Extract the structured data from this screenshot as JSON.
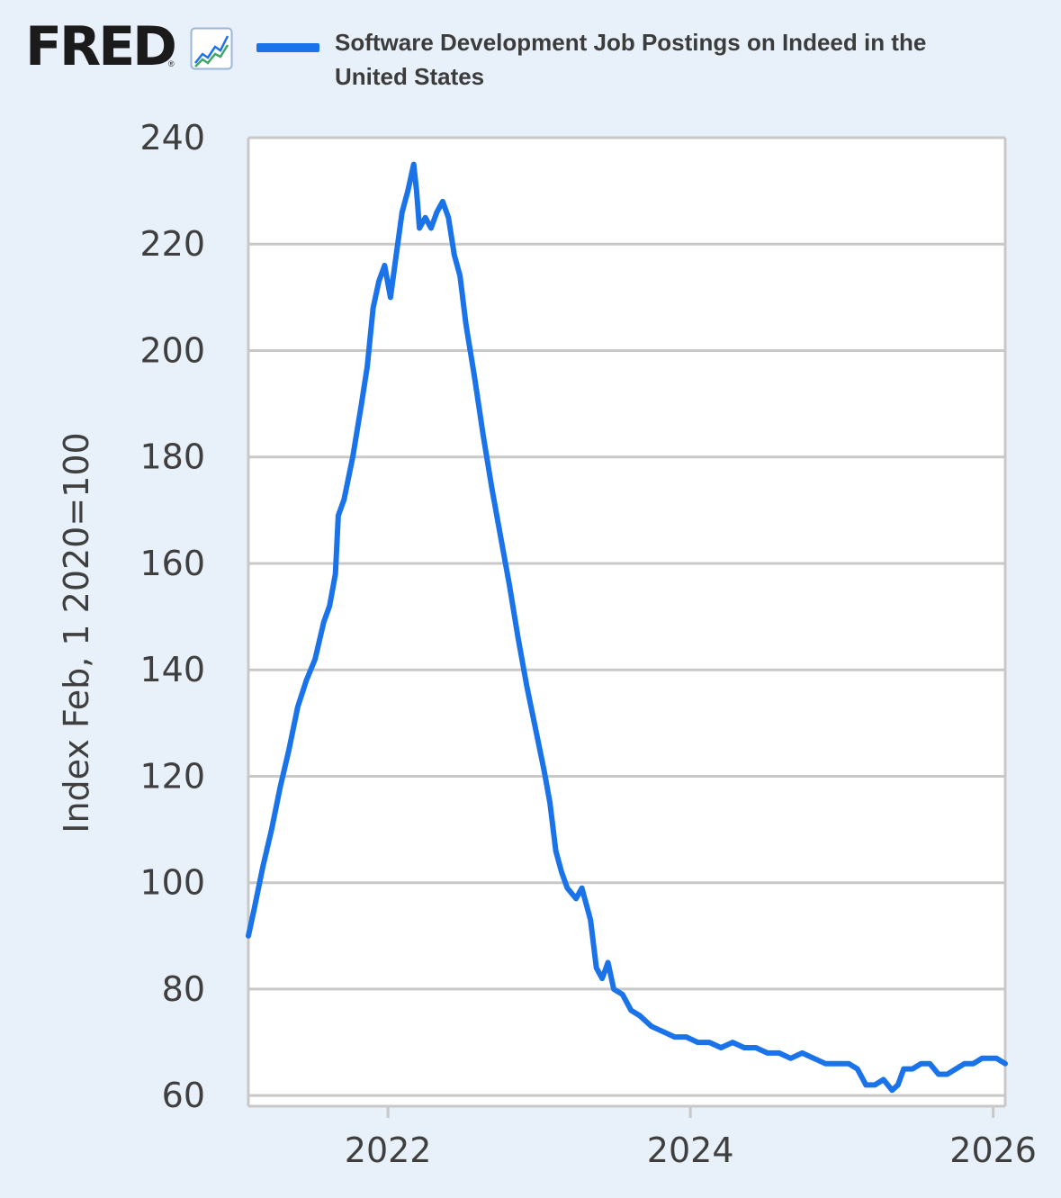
{
  "header": {
    "logo_text": "FRED",
    "logo_reg": "®",
    "logo_icon": "line-chart-icon"
  },
  "colors": {
    "background": "#e8f0fa",
    "plot_background": "#ffffff",
    "series": "#1a73e8",
    "grid": "#c8c8c8"
  },
  "chart_data": {
    "type": "line",
    "title": "",
    "xlabel": "",
    "ylabel": "Index Feb, 1 2020=100",
    "xlim": [
      "2021-01-29",
      "2026-01-30"
    ],
    "ylim": [
      58,
      240
    ],
    "grid": true,
    "legend_position": "top",
    "yticks": [
      60,
      80,
      100,
      120,
      140,
      160,
      180,
      200,
      220,
      240
    ],
    "xticks": [
      "2022-01-01",
      "2024-01-01",
      "2026-01-01"
    ],
    "xtick_labels": [
      "2022",
      "2024",
      "2026"
    ],
    "series": [
      {
        "name": "Software Development Job Postings on Indeed in the United States",
        "color": "#1a73e8",
        "points": [
          [
            "2021-01-29",
            90
          ],
          [
            "2021-02-12",
            95
          ],
          [
            "2021-03-05",
            103
          ],
          [
            "2021-03-26",
            110
          ],
          [
            "2021-04-16",
            118
          ],
          [
            "2021-05-07",
            125
          ],
          [
            "2021-05-28",
            133
          ],
          [
            "2021-06-18",
            138
          ],
          [
            "2021-07-09",
            142
          ],
          [
            "2021-07-30",
            149
          ],
          [
            "2021-08-13",
            152
          ],
          [
            "2021-08-27",
            158
          ],
          [
            "2021-09-03",
            169
          ],
          [
            "2021-09-17",
            172
          ],
          [
            "2021-10-08",
            180
          ],
          [
            "2021-10-29",
            190
          ],
          [
            "2021-11-12",
            197
          ],
          [
            "2021-11-26",
            208
          ],
          [
            "2021-12-10",
            213
          ],
          [
            "2021-12-24",
            216
          ],
          [
            "2022-01-07",
            210
          ],
          [
            "2022-01-21",
            218
          ],
          [
            "2022-02-04",
            226
          ],
          [
            "2022-02-18",
            230
          ],
          [
            "2022-03-04",
            235
          ],
          [
            "2022-03-11",
            230
          ],
          [
            "2022-03-18",
            223
          ],
          [
            "2022-04-01",
            225
          ],
          [
            "2022-04-15",
            223
          ],
          [
            "2022-04-29",
            226
          ],
          [
            "2022-05-13",
            228
          ],
          [
            "2022-05-27",
            225
          ],
          [
            "2022-06-10",
            218
          ],
          [
            "2022-06-24",
            214
          ],
          [
            "2022-07-08",
            205
          ],
          [
            "2022-07-29",
            195
          ],
          [
            "2022-08-19",
            184
          ],
          [
            "2022-09-09",
            174
          ],
          [
            "2022-09-30",
            165
          ],
          [
            "2022-10-21",
            156
          ],
          [
            "2022-11-11",
            146
          ],
          [
            "2022-12-02",
            137
          ],
          [
            "2022-12-23",
            129
          ],
          [
            "2023-01-13",
            121
          ],
          [
            "2023-01-27",
            115
          ],
          [
            "2023-02-10",
            106
          ],
          [
            "2023-02-24",
            102
          ],
          [
            "2023-03-10",
            99
          ],
          [
            "2023-03-31",
            97
          ],
          [
            "2023-04-14",
            99
          ],
          [
            "2023-05-05",
            93
          ],
          [
            "2023-05-19",
            84
          ],
          [
            "2023-06-02",
            82
          ],
          [
            "2023-06-16",
            85
          ],
          [
            "2023-06-30",
            80
          ],
          [
            "2023-07-21",
            79
          ],
          [
            "2023-08-11",
            76
          ],
          [
            "2023-09-01",
            75
          ],
          [
            "2023-09-29",
            73
          ],
          [
            "2023-10-27",
            72
          ],
          [
            "2023-11-24",
            71
          ],
          [
            "2023-12-22",
            71
          ],
          [
            "2024-01-19",
            70
          ],
          [
            "2024-02-16",
            70
          ],
          [
            "2024-03-15",
            69
          ],
          [
            "2024-04-12",
            70
          ],
          [
            "2024-05-10",
            69
          ],
          [
            "2024-06-07",
            69
          ],
          [
            "2024-07-05",
            68
          ],
          [
            "2024-08-02",
            68
          ],
          [
            "2024-08-30",
            67
          ],
          [
            "2024-09-27",
            68
          ],
          [
            "2024-10-25",
            67
          ],
          [
            "2024-11-22",
            66
          ],
          [
            "2024-12-20",
            66
          ],
          [
            "2025-01-17",
            66
          ],
          [
            "2025-02-07",
            65
          ],
          [
            "2025-02-28",
            62
          ],
          [
            "2025-03-21",
            62
          ],
          [
            "2025-04-11",
            63
          ],
          [
            "2025-05-02",
            61
          ],
          [
            "2025-05-16",
            62
          ],
          [
            "2025-05-30",
            65
          ],
          [
            "2025-06-20",
            65
          ],
          [
            "2025-07-11",
            66
          ],
          [
            "2025-08-01",
            66
          ],
          [
            "2025-08-22",
            64
          ],
          [
            "2025-09-12",
            64
          ],
          [
            "2025-10-03",
            65
          ],
          [
            "2025-10-24",
            66
          ],
          [
            "2025-11-14",
            66
          ],
          [
            "2025-12-05",
            67
          ],
          [
            "2025-12-26",
            67
          ],
          [
            "2026-01-09",
            67
          ],
          [
            "2026-01-30",
            66
          ]
        ]
      }
    ]
  }
}
